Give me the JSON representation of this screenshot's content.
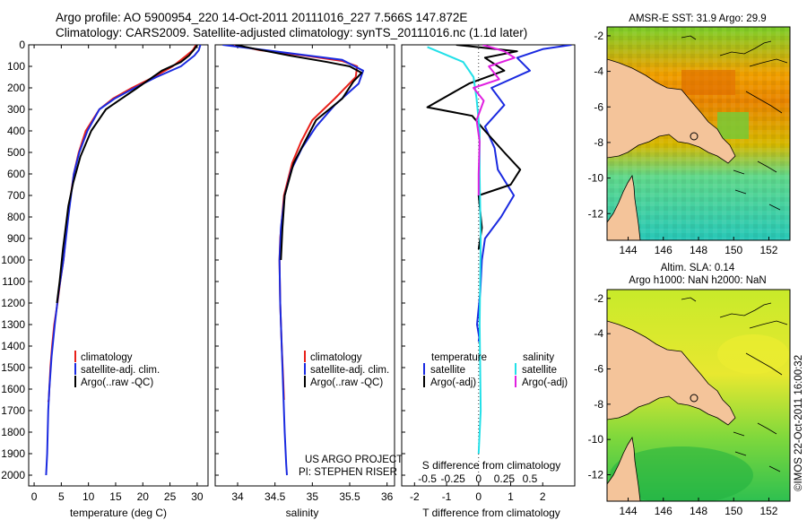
{
  "header": {
    "line1": "Argo profile: AO 5900954_220 14-Oct-2011 20111016_227 7.566S 147.872E",
    "line2": "Climatology: CARS2009. Satellite-adjusted climatology: synTS_20111016.nc (1.1d later)"
  },
  "colors": {
    "climatology": "#e8201a",
    "satellite": "#1a2ae0",
    "argo": "#000000",
    "sal_satellite": "#22e0e8",
    "sal_argo": "#e020e0",
    "land": "#f4c49a"
  },
  "chart_data": [
    {
      "id": "temperature",
      "type": "line",
      "xlabel": "temperature (deg C)",
      "ylabel": "",
      "xlim": [
        -1,
        32
      ],
      "ylim": [
        0,
        2050
      ],
      "xticks": [
        0,
        5,
        10,
        15,
        20,
        25,
        30
      ],
      "yticks": [
        0,
        100,
        200,
        300,
        400,
        500,
        600,
        700,
        800,
        900,
        1000,
        1100,
        1200,
        1300,
        1400,
        1500,
        1600,
        1700,
        1800,
        1900,
        2000
      ],
      "legend": [
        "climatology",
        "satellite-adj. clim.",
        "Argo(..raw -QC)"
      ],
      "series": [
        {
          "name": "climatology",
          "x": [
            29.8,
            29.2,
            28.0,
            25.5,
            22.0,
            18.0,
            14.5,
            12.0,
            9.5,
            8.2,
            7.3,
            6.2,
            5.4,
            4.8,
            4.3,
            3.7,
            3.3,
            3.0,
            2.8,
            2.7,
            2.6
          ],
          "depth": [
            0,
            25,
            50,
            100,
            150,
            200,
            250,
            300,
            400,
            500,
            600,
            800,
            1000,
            1100,
            1200,
            1300,
            1400,
            1500,
            1600,
            1650,
            1660
          ]
        },
        {
          "name": "satellite",
          "x": [
            30.6,
            30.3,
            29.5,
            27.0,
            22.5,
            18.5,
            14.8,
            12.0,
            9.8,
            8.3,
            7.3,
            6.3,
            5.4,
            4.5,
            3.8,
            3.2,
            2.8,
            2.6,
            2.5,
            2.4,
            2.3,
            2.2
          ],
          "depth": [
            0,
            25,
            50,
            100,
            150,
            200,
            250,
            300,
            400,
            500,
            600,
            800,
            1000,
            1150,
            1300,
            1450,
            1600,
            1700,
            1800,
            1900,
            1950,
            2000
          ]
        },
        {
          "name": "argo",
          "x": [
            30.0,
            29.5,
            28.5,
            27.0,
            23.5,
            19.0,
            15.5,
            13.2,
            10.5,
            8.5,
            7.2,
            6.3,
            5.8,
            5.3,
            4.7,
            4.2
          ],
          "depth": [
            0,
            20,
            50,
            80,
            120,
            200,
            260,
            300,
            400,
            520,
            640,
            750,
            850,
            950,
            1100,
            1200
          ]
        }
      ]
    },
    {
      "id": "salinity",
      "type": "line",
      "xlabel": "salinity",
      "ylabel": "",
      "xlim": [
        33.7,
        36.1
      ],
      "ylim": [
        0,
        2050
      ],
      "xticks": [
        34,
        34.5,
        35,
        35.5,
        36
      ],
      "legend": [
        "climatology",
        "satellite-adj. clim.",
        "Argo(..raw -QC)"
      ],
      "series": [
        {
          "name": "climatology",
          "x": [
            33.95,
            34.3,
            34.9,
            35.4,
            35.6,
            35.58,
            35.3,
            35.0,
            34.85,
            34.73,
            34.62,
            34.57,
            34.56,
            34.57,
            34.59,
            34.61,
            34.62
          ],
          "depth": [
            0,
            25,
            50,
            75,
            100,
            150,
            250,
            350,
            450,
            550,
            700,
            900,
            1000,
            1200,
            1400,
            1550,
            1650
          ]
        },
        {
          "name": "satellite",
          "x": [
            33.8,
            34.5,
            35.4,
            35.68,
            35.62,
            35.3,
            35.05,
            34.86,
            34.72,
            34.63,
            34.58,
            34.56,
            34.57,
            34.6,
            34.63,
            34.65,
            34.66
          ],
          "depth": [
            0,
            30,
            70,
            120,
            180,
            280,
            380,
            480,
            580,
            700,
            850,
            1000,
            1200,
            1500,
            1800,
            1950,
            2000
          ]
        },
        {
          "name": "argo",
          "x": [
            33.97,
            34.25,
            34.7,
            35.2,
            35.5,
            35.66,
            35.55,
            35.4,
            35.05,
            34.9,
            34.75,
            34.63,
            34.6,
            34.58
          ],
          "depth": [
            0,
            20,
            50,
            80,
            100,
            130,
            170,
            250,
            350,
            450,
            550,
            700,
            850,
            1000
          ]
        }
      ],
      "annotation": [
        "US ARGO PROJECT",
        "PI: STEPHEN RISER"
      ]
    },
    {
      "id": "difference",
      "type": "line",
      "xlabel": "T difference from climatology",
      "xlabel_top": "S difference from climatology",
      "xlim": [
        -2.4,
        3.0
      ],
      "ylim": [
        0,
        2050
      ],
      "xticks": [
        -2,
        -1,
        0,
        1,
        2
      ],
      "sticks": [
        -0.5,
        -0.25,
        0,
        0.25,
        0.5
      ],
      "sticks_labels": [
        "-0.5",
        "-0.25",
        "0",
        "0.25",
        "0.5"
      ],
      "legend_t_title": "temperature",
      "legend_s_title": "salinity",
      "legend": [
        "satellite",
        "Argo(-adj)",
        "satellite",
        "Argo(-adj)"
      ],
      "series": [
        {
          "name": "T satellite",
          "x": [
            2.9,
            2.0,
            1.2,
            1.6,
            0.4,
            0.8,
            0.2,
            0.5,
            0.6,
            1.1,
            0.7,
            0.2,
            0.1,
            0.05,
            -0.05,
            0.02,
            0.0
          ],
          "depth": [
            0,
            20,
            60,
            120,
            200,
            280,
            380,
            480,
            580,
            700,
            800,
            900,
            1000,
            1150,
            1300,
            1360,
            1380
          ]
        },
        {
          "name": "T argo",
          "x": [
            -0.7,
            1.2,
            0.2,
            0.8,
            -0.3,
            -1.6,
            -0.2,
            0.2,
            0.8,
            1.3,
            1.0,
            0.0,
            0.1,
            0.0
          ],
          "depth": [
            0,
            30,
            60,
            120,
            180,
            290,
            330,
            400,
            500,
            580,
            650,
            700,
            850,
            950
          ]
        },
        {
          "name": "S satellite",
          "x": [
            -0.5,
            -0.35,
            -0.15,
            -0.05,
            -0.02,
            0.01,
            0.01,
            0.02,
            0.01,
            0.02,
            0.0
          ],
          "depth": [
            10,
            40,
            80,
            150,
            250,
            400,
            600,
            900,
            1300,
            1700,
            1900
          ]
        },
        {
          "name": "S argo",
          "x": [
            0.04,
            0.25,
            0.35,
            0.1,
            0.2,
            -0.05,
            0.05,
            -0.02,
            0.01,
            0.0,
            0.0
          ],
          "depth": [
            0,
            30,
            60,
            100,
            160,
            200,
            260,
            350,
            450,
            600,
            700
          ]
        }
      ]
    },
    {
      "id": "sst_map",
      "type": "heatmap",
      "title": "AMSR-E SST: 31.9 Argo: 29.9",
      "xticks": [
        144,
        146,
        148,
        150,
        152
      ],
      "yticks": [
        -2,
        -4,
        -6,
        -8,
        -10,
        -12
      ],
      "xlim": [
        142.8,
        153.2
      ],
      "ylim": [
        -13.5,
        -1.5
      ],
      "argo_position": [
        147.87,
        -7.57
      ]
    },
    {
      "id": "sla_map",
      "type": "heatmap",
      "title_line1": "Altim. SLA: 0.14",
      "title_line2": "Argo h1000: NaN h2000: NaN",
      "xticks": [
        144,
        146,
        148,
        150,
        152
      ],
      "yticks": [
        -2,
        -4,
        -6,
        -8,
        -10,
        -12
      ],
      "xlim": [
        142.8,
        153.2
      ],
      "ylim": [
        -13.5,
        -1.5
      ],
      "argo_position": [
        147.87,
        -7.57
      ]
    }
  ],
  "footer": {
    "credit": "©IMOS 22-Oct-2011 16:00:32"
  }
}
